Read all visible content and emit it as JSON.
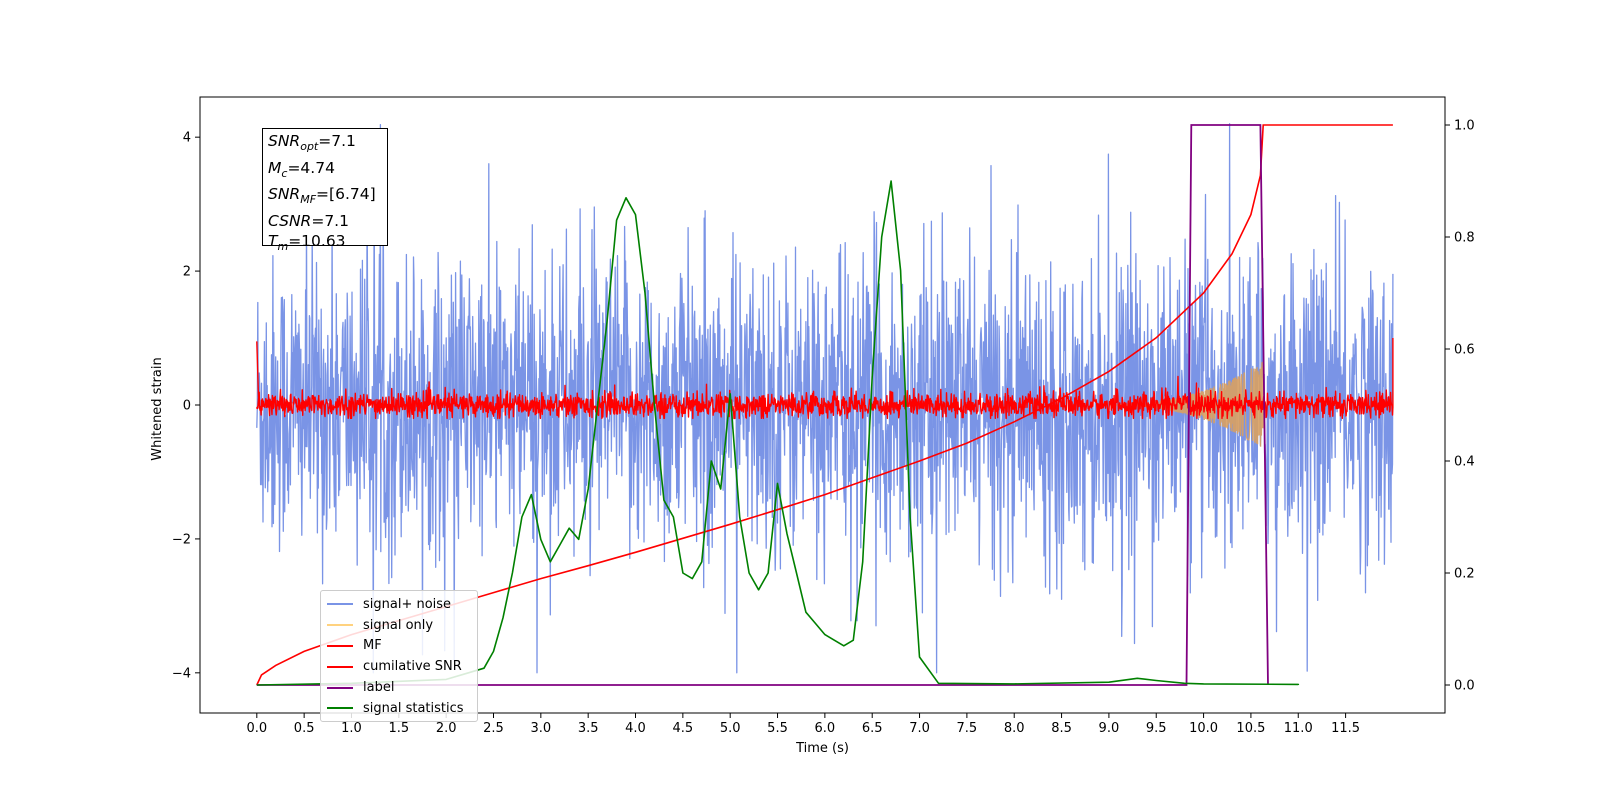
{
  "chart_data": {
    "type": "line",
    "xlabel": "Time (s)",
    "ylabel": "Whitened strain",
    "x_ticks": [
      0.0,
      0.5,
      1.0,
      1.5,
      2.0,
      2.5,
      3.0,
      3.5,
      4.0,
      4.5,
      5.0,
      5.5,
      6.0,
      6.5,
      7.0,
      7.5,
      8.0,
      8.5,
      9.0,
      9.5,
      10.0,
      10.5,
      11.0,
      11.5
    ],
    "x_tick_labels": [
      "0.0",
      "0.5",
      "1.0",
      "1.5",
      "2.0",
      "2.5",
      "3.0",
      "3.5",
      "4.0",
      "4.5",
      "5.0",
      "5.5",
      "6.0",
      "6.5",
      "7.0",
      "7.5",
      "8.0",
      "8.5",
      "9.0",
      "9.5",
      "10.0",
      "10.5",
      "11.0",
      "11.5"
    ],
    "xlim": [
      -0.6,
      12.55
    ],
    "ylim": [
      -4.6,
      4.6
    ],
    "y_ticks": [
      -4,
      -2,
      0,
      2,
      4
    ],
    "y_tick_labels": [
      "−4",
      "−2",
      "0",
      "2",
      "4"
    ],
    "y2lim": [
      -0.05,
      1.05
    ],
    "y2_ticks": [
      0.0,
      0.2,
      0.4,
      0.6,
      0.8,
      1.0
    ],
    "y2_tick_labels": [
      "0.0",
      "0.2",
      "0.4",
      "0.6",
      "0.8",
      "1.0"
    ],
    "legend_position": "lower-left",
    "legend": [
      {
        "label": "signal+ noise",
        "color": "#7a94e6"
      },
      {
        "label": "signal only",
        "color": "#ffd27f"
      },
      {
        "label": "MF",
        "color": "#ff0000"
      },
      {
        "label": "cumilative SNR",
        "color": "#ff0000"
      },
      {
        "label": "label",
        "color": "#800080"
      },
      {
        "label": "signal statistics",
        "color": "#008000"
      }
    ],
    "annotation": {
      "lines": [
        {
          "var": "SNR",
          "sub": "opt",
          "value": "=7.1"
        },
        {
          "var": "M",
          "sub": "c",
          "value": "=4.74"
        },
        {
          "var": "SNR",
          "sub": "MF",
          "value": "=[6.74]"
        },
        {
          "var": "CSNR",
          "sub": "",
          "value": "=7.1"
        },
        {
          "var": "T",
          "sub": "m",
          "value": "=10.63"
        }
      ]
    },
    "series": [
      {
        "name": "signal+ noise",
        "axis": "left",
        "style": "noise",
        "x_range": [
          0.0,
          12.0
        ],
        "envelope_typical": [
          -1.5,
          1.5
        ],
        "extremes": [
          -4.0,
          4.2
        ]
      },
      {
        "name": "signal only",
        "axis": "left",
        "style": "chirp",
        "x_range": [
          9.0,
          10.63
        ],
        "peak_amplitude": 0.65
      },
      {
        "name": "MF",
        "axis": "left",
        "style": "noise",
        "x_range": [
          0.0,
          12.0
        ],
        "envelope_typical": [
          -0.2,
          0.2
        ],
        "extremes": [
          -0.2,
          1.0
        ]
      },
      {
        "name": "cumilative SNR",
        "axis": "right",
        "x": [
          0.0,
          0.05,
          0.2,
          0.5,
          1.0,
          1.5,
          2.0,
          2.5,
          3.0,
          3.5,
          4.0,
          4.5,
          5.0,
          5.5,
          6.0,
          6.5,
          7.0,
          7.5,
          8.0,
          8.5,
          9.0,
          9.5,
          10.0,
          10.3,
          10.5,
          10.6,
          10.63,
          12.0
        ],
        "y": [
          0.0,
          0.018,
          0.035,
          0.06,
          0.09,
          0.115,
          0.14,
          0.165,
          0.19,
          0.213,
          0.237,
          0.262,
          0.287,
          0.313,
          0.34,
          0.37,
          0.4,
          0.432,
          0.47,
          0.512,
          0.56,
          0.62,
          0.7,
          0.77,
          0.84,
          0.91,
          1.0,
          1.0
        ]
      },
      {
        "name": "label",
        "axis": "right",
        "x": [
          0.0,
          9.82,
          9.87,
          10.6,
          10.68
        ],
        "y": [
          0.0,
          0.0,
          1.0,
          1.0,
          0.0
        ]
      },
      {
        "name": "signal statistics",
        "axis": "right",
        "x": [
          0.0,
          1.0,
          2.0,
          2.2,
          2.4,
          2.5,
          2.6,
          2.7,
          2.8,
          2.9,
          3.0,
          3.1,
          3.2,
          3.3,
          3.4,
          3.5,
          3.6,
          3.7,
          3.8,
          3.9,
          4.0,
          4.1,
          4.2,
          4.3,
          4.4,
          4.5,
          4.6,
          4.7,
          4.8,
          4.9,
          5.0,
          5.1,
          5.2,
          5.3,
          5.4,
          5.5,
          5.6,
          5.7,
          5.8,
          5.9,
          6.0,
          6.1,
          6.2,
          6.3,
          6.4,
          6.5,
          6.6,
          6.7,
          6.8,
          6.9,
          7.0,
          7.2,
          8.0,
          9.0,
          9.3,
          9.5,
          9.8,
          10.0,
          11.0,
          11.0
        ],
        "y": [
          0.0,
          0.003,
          0.01,
          0.02,
          0.03,
          0.06,
          0.12,
          0.2,
          0.3,
          0.34,
          0.26,
          0.22,
          0.25,
          0.28,
          0.26,
          0.35,
          0.5,
          0.65,
          0.83,
          0.87,
          0.84,
          0.7,
          0.5,
          0.33,
          0.3,
          0.2,
          0.19,
          0.22,
          0.4,
          0.35,
          0.52,
          0.3,
          0.2,
          0.17,
          0.2,
          0.36,
          0.27,
          0.2,
          0.13,
          0.11,
          0.09,
          0.08,
          0.07,
          0.08,
          0.22,
          0.55,
          0.8,
          0.9,
          0.74,
          0.3,
          0.05,
          0.003,
          0.002,
          0.005,
          0.012,
          0.008,
          0.003,
          0.002,
          0.001,
          0.0
        ]
      }
    ]
  }
}
